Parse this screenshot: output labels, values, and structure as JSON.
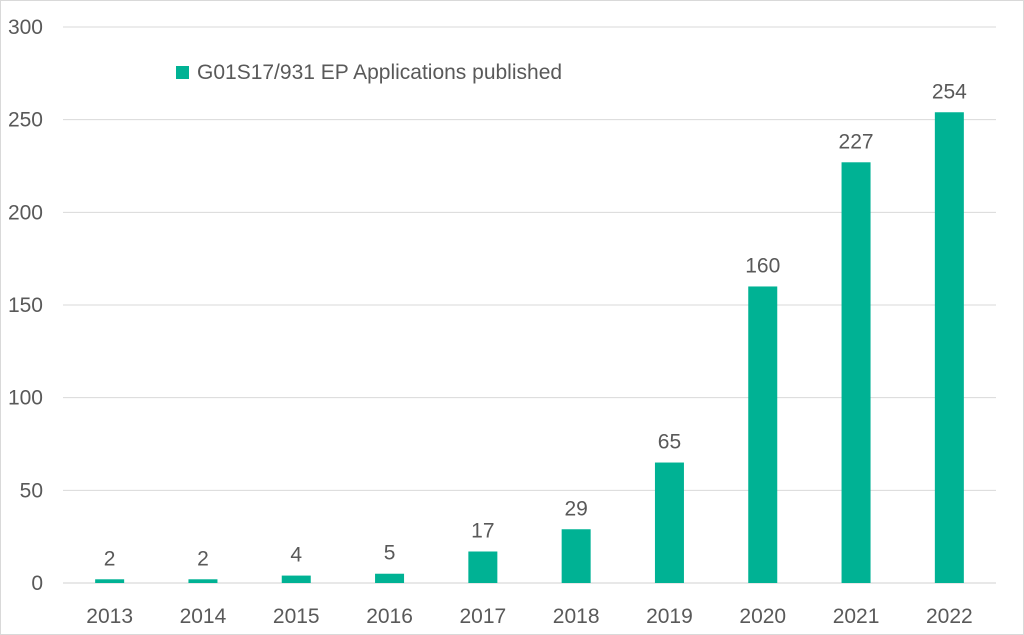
{
  "chart_data": {
    "type": "bar",
    "categories": [
      "2013",
      "2014",
      "2015",
      "2016",
      "2017",
      "2018",
      "2019",
      "2020",
      "2021",
      "2022"
    ],
    "series": [
      {
        "name": "G01S17/931 EP Applications published",
        "values": [
          2,
          2,
          4,
          5,
          17,
          29,
          65,
          160,
          227,
          254
        ],
        "color": "#00b294"
      }
    ],
    "title": "",
    "xlabel": "",
    "ylabel": "",
    "ylim": [
      0,
      300
    ],
    "yticks": [
      0,
      50,
      100,
      150,
      200,
      250,
      300
    ],
    "grid": true,
    "legend_position": "top-left",
    "data_labels": true
  }
}
